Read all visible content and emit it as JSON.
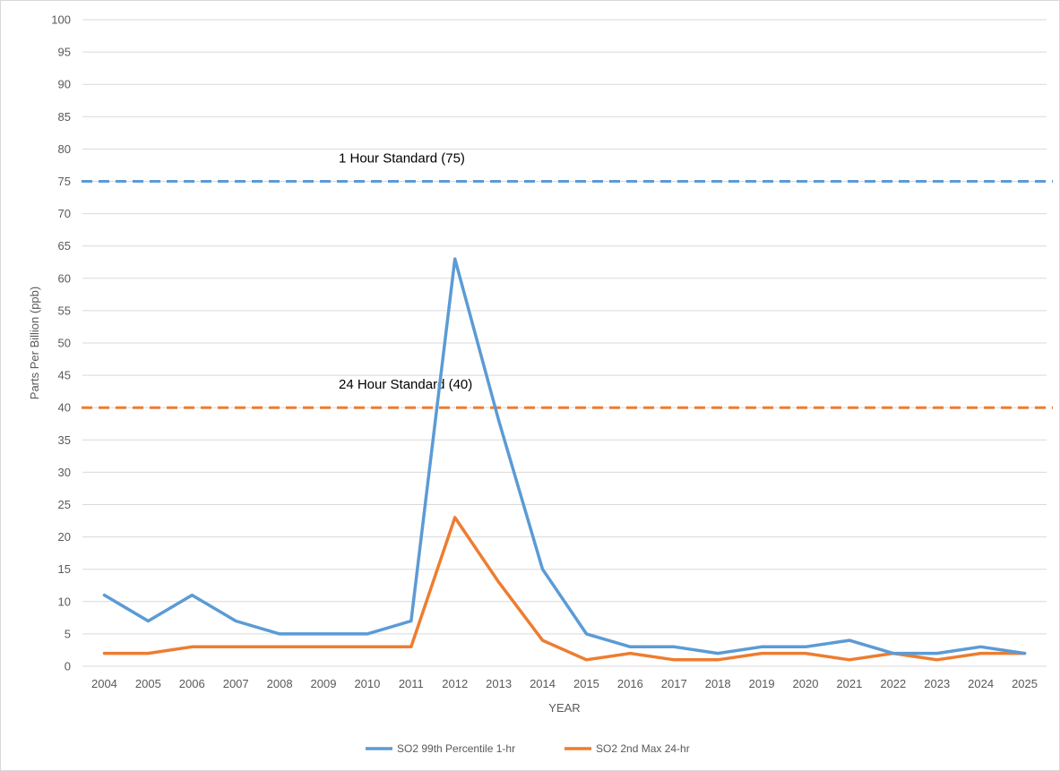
{
  "chart_data": {
    "type": "line",
    "ylabel": "Parts Per Billion (ppb)",
    "xlabel": "YEAR",
    "ylim": [
      0,
      100
    ],
    "ytick_step": 5,
    "grid": true,
    "legend_position": "bottom",
    "categories": [
      "2004",
      "2005",
      "2006",
      "2007",
      "2008",
      "2009",
      "2010",
      "2011",
      "2012",
      "2013",
      "2014",
      "2015",
      "2016",
      "2017",
      "2018",
      "2019",
      "2020",
      "2021",
      "2022",
      "2023",
      "2024",
      "2025"
    ],
    "series": [
      {
        "name": "SO2 99th Percentile 1-hr",
        "color": "#5b9bd5",
        "values": [
          11,
          7,
          11,
          7,
          5,
          5,
          5,
          7,
          63,
          38,
          15,
          5,
          3,
          3,
          2,
          3,
          3,
          4,
          2,
          2,
          3,
          2
        ]
      },
      {
        "name": "SO2 2nd Max 24-hr",
        "color": "#ed7d31",
        "values": [
          2,
          2,
          3,
          3,
          3,
          3,
          3,
          3,
          23,
          13,
          4,
          1,
          2,
          1,
          1,
          2,
          2,
          1,
          2,
          1,
          2,
          2
        ]
      }
    ],
    "reference_lines": [
      {
        "label": "1 Hour Standard (75)",
        "value": 75,
        "color": "#5b9bd5"
      },
      {
        "label": "24 Hour Standard (40)",
        "value": 40,
        "color": "#ed7d31"
      }
    ]
  }
}
